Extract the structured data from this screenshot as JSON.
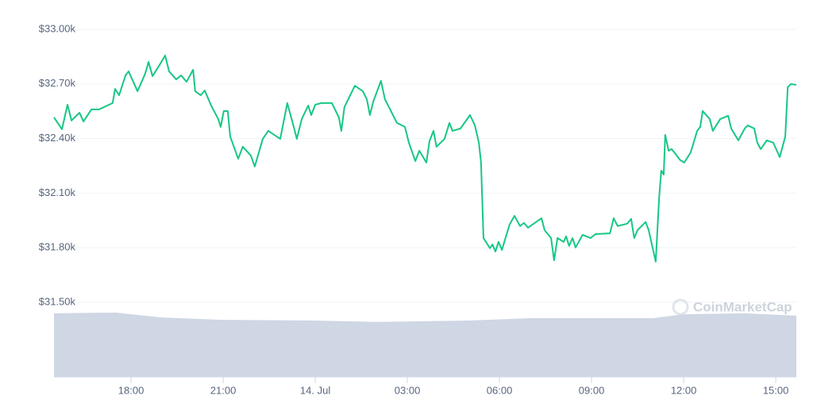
{
  "chart_data": {
    "type": "line",
    "xlim": [
      15.49,
      39.67
    ],
    "xticks": [
      {
        "value": 18,
        "label": "18:00"
      },
      {
        "value": 21,
        "label": "21:00"
      },
      {
        "value": 24,
        "label": "14. Jul"
      },
      {
        "value": 27,
        "label": "03:00"
      },
      {
        "value": 30,
        "label": "06:00"
      },
      {
        "value": 33,
        "label": "09:00"
      },
      {
        "value": 36,
        "label": "12:00"
      },
      {
        "value": 39,
        "label": "15:00"
      }
    ],
    "ylim": [
      31090,
      33000
    ],
    "yticks": [
      {
        "value": 31500,
        "label": "$31.50k"
      },
      {
        "value": 31800,
        "label": "$31.80k"
      },
      {
        "value": 32100,
        "label": "$32.10k"
      },
      {
        "value": 32400,
        "label": "$32.40k"
      },
      {
        "value": 32700,
        "label": "$32.70k"
      },
      {
        "value": 33000,
        "label": "$33.00k"
      }
    ],
    "grid": true,
    "watermark": "CoinMarketCap",
    "series": [
      {
        "color": "#16c784",
        "x": [
          15.49,
          15.75,
          15.93,
          16.06,
          16.32,
          16.45,
          16.71,
          16.96,
          17.4,
          17.48,
          17.61,
          17.82,
          17.92,
          18.21,
          18.46,
          18.57,
          18.7,
          18.96,
          19.11,
          19.24,
          19.47,
          19.63,
          19.81,
          20.02,
          20.09,
          20.27,
          20.4,
          20.61,
          20.84,
          20.92,
          21.02,
          21.15,
          21.23,
          21.49,
          21.64,
          21.9,
          22.03,
          22.29,
          22.47,
          22.86,
          23.09,
          23.3,
          23.4,
          23.56,
          23.77,
          23.87,
          24.0,
          24.2,
          24.54,
          24.77,
          24.85,
          24.95,
          25.29,
          25.55,
          25.68,
          25.78,
          25.89,
          26.14,
          26.27,
          26.66,
          26.92,
          27.05,
          27.26,
          27.39,
          27.62,
          27.72,
          27.85,
          27.95,
          28.21,
          28.37,
          28.47,
          28.73,
          29.04,
          29.2,
          29.33,
          29.4,
          29.48,
          29.69,
          29.77,
          29.87,
          29.97,
          30.08,
          30.33,
          30.49,
          30.67,
          30.8,
          30.93,
          31.37,
          31.47,
          31.68,
          31.78,
          31.89,
          32.09,
          32.17,
          32.27,
          32.38,
          32.48,
          32.71,
          32.97,
          33.13,
          33.6,
          33.72,
          33.85,
          34.16,
          34.29,
          34.39,
          34.5,
          34.76,
          34.86,
          35.09,
          35.2,
          35.27,
          35.35,
          35.4,
          35.51,
          35.61,
          35.89,
          36.02,
          36.23,
          36.44,
          36.54,
          36.62,
          36.85,
          36.95,
          37.19,
          37.45,
          37.55,
          37.78,
          37.99,
          38.09,
          38.3,
          38.4,
          38.51,
          38.71,
          38.92,
          39.13,
          39.31,
          39.39,
          39.49,
          39.67
        ],
        "values": [
          32516,
          32451,
          32586,
          32499,
          32542,
          32494,
          32560,
          32560,
          32595,
          32673,
          32638,
          32747,
          32769,
          32660,
          32756,
          32821,
          32743,
          32813,
          32856,
          32769,
          32725,
          32747,
          32712,
          32778,
          32660,
          32638,
          32664,
          32581,
          32507,
          32464,
          32551,
          32551,
          32411,
          32289,
          32355,
          32307,
          32246,
          32398,
          32442,
          32398,
          32595,
          32464,
          32398,
          32507,
          32581,
          32529,
          32586,
          32595,
          32595,
          32516,
          32442,
          32573,
          32690,
          32660,
          32616,
          32529,
          32603,
          32717,
          32616,
          32486,
          32464,
          32377,
          32276,
          32333,
          32268,
          32385,
          32442,
          32355,
          32398,
          32486,
          32442,
          32455,
          32529,
          32472,
          32377,
          32268,
          31853,
          31797,
          31818,
          31779,
          31832,
          31788,
          31927,
          31975,
          31919,
          31936,
          31910,
          31962,
          31897,
          31853,
          31731,
          31853,
          31832,
          31862,
          31810,
          31853,
          31801,
          31871,
          31853,
          31875,
          31879,
          31962,
          31919,
          31932,
          31958,
          31853,
          31897,
          31941,
          31897,
          31723,
          32071,
          32224,
          32202,
          32420,
          32333,
          32342,
          32281,
          32268,
          32324,
          32442,
          32464,
          32551,
          32507,
          32442,
          32507,
          32525,
          32455,
          32390,
          32455,
          32472,
          32455,
          32377,
          32342,
          32390,
          32377,
          32298,
          32411,
          32682,
          32699,
          32695
        ]
      }
    ],
    "y2lim": [
      0,
      100
    ],
    "volume": {
      "color": "#cfd6e4",
      "axis": "y2",
      "x": [
        15.49,
        17.5,
        19,
        21,
        24,
        26,
        29,
        31,
        35,
        36,
        38,
        39.67
      ],
      "values": [
        18.3,
        18.5,
        17.1,
        16.4,
        16.2,
        15.8,
        16.2,
        16.9,
        16.9,
        18.0,
        18.3,
        17.6
      ]
    }
  }
}
